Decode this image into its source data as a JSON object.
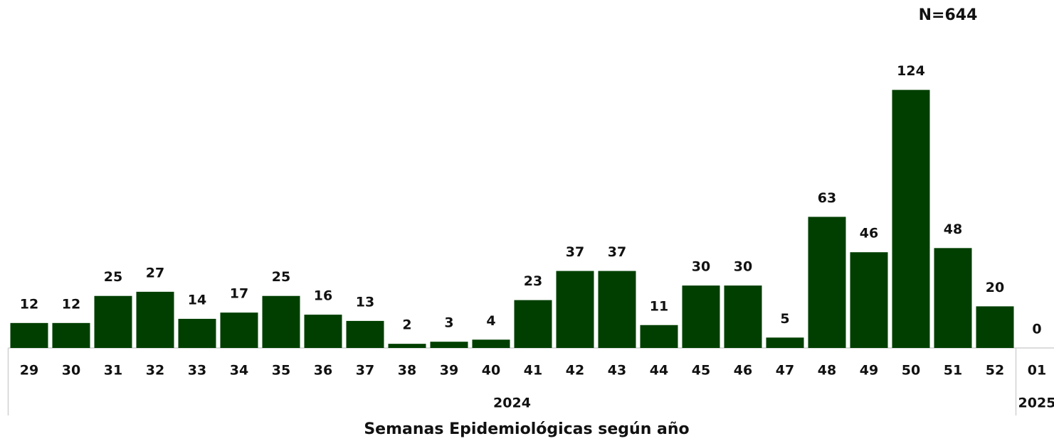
{
  "chart_data": {
    "type": "bar",
    "annotation": "N=644",
    "xlabel": "Semanas Epidemiológicas según año",
    "categories": [
      "29",
      "30",
      "31",
      "32",
      "33",
      "34",
      "35",
      "36",
      "37",
      "38",
      "39",
      "40",
      "41",
      "42",
      "43",
      "44",
      "45",
      "46",
      "47",
      "48",
      "49",
      "50",
      "51",
      "52",
      "01"
    ],
    "values": [
      12,
      12,
      25,
      27,
      14,
      17,
      25,
      16,
      13,
      2,
      3,
      4,
      23,
      37,
      37,
      11,
      30,
      30,
      5,
      63,
      46,
      124,
      48,
      20,
      0
    ],
    "groups": [
      {
        "label": "2024",
        "count": 24
      },
      {
        "label": "2025",
        "count": 1
      }
    ],
    "color": "#003f00",
    "ylim": [
      0,
      130
    ]
  }
}
